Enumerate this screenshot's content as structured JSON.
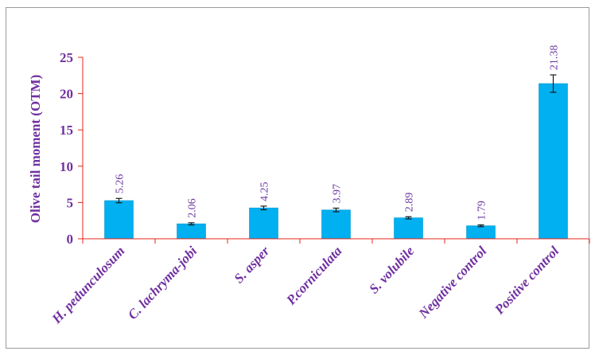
{
  "colors": {
    "bar": "#00B0F0",
    "bar_stroke": "#0096d0",
    "axis": "#e8251b",
    "text": "#7030A0",
    "value_text": "#6a3aa0",
    "border": "#9a9a9a"
  },
  "chart_data": {
    "type": "bar",
    "title": "",
    "xlabel": "",
    "ylabel": "Olive tail moment (OTM)",
    "ylim": [
      0,
      25
    ],
    "yticks": [
      "0",
      "5",
      "10",
      "15",
      "20",
      "25"
    ],
    "grid": false,
    "legend": "none",
    "categories": [
      "H. pedunculosum",
      "C. lachryma-jobi",
      "S. asper",
      "P.corniculata",
      "S. volubile",
      "Negative control",
      "Positive control"
    ],
    "values": [
      5.26,
      2.06,
      4.25,
      3.97,
      2.89,
      1.79,
      21.38
    ],
    "value_labels": [
      "5.26",
      "2.06",
      "4.25",
      "3.97",
      "2.89",
      "1.79",
      "21.38"
    ],
    "error": [
      0.3,
      0.15,
      0.25,
      0.25,
      0.15,
      0.12,
      1.2
    ]
  }
}
